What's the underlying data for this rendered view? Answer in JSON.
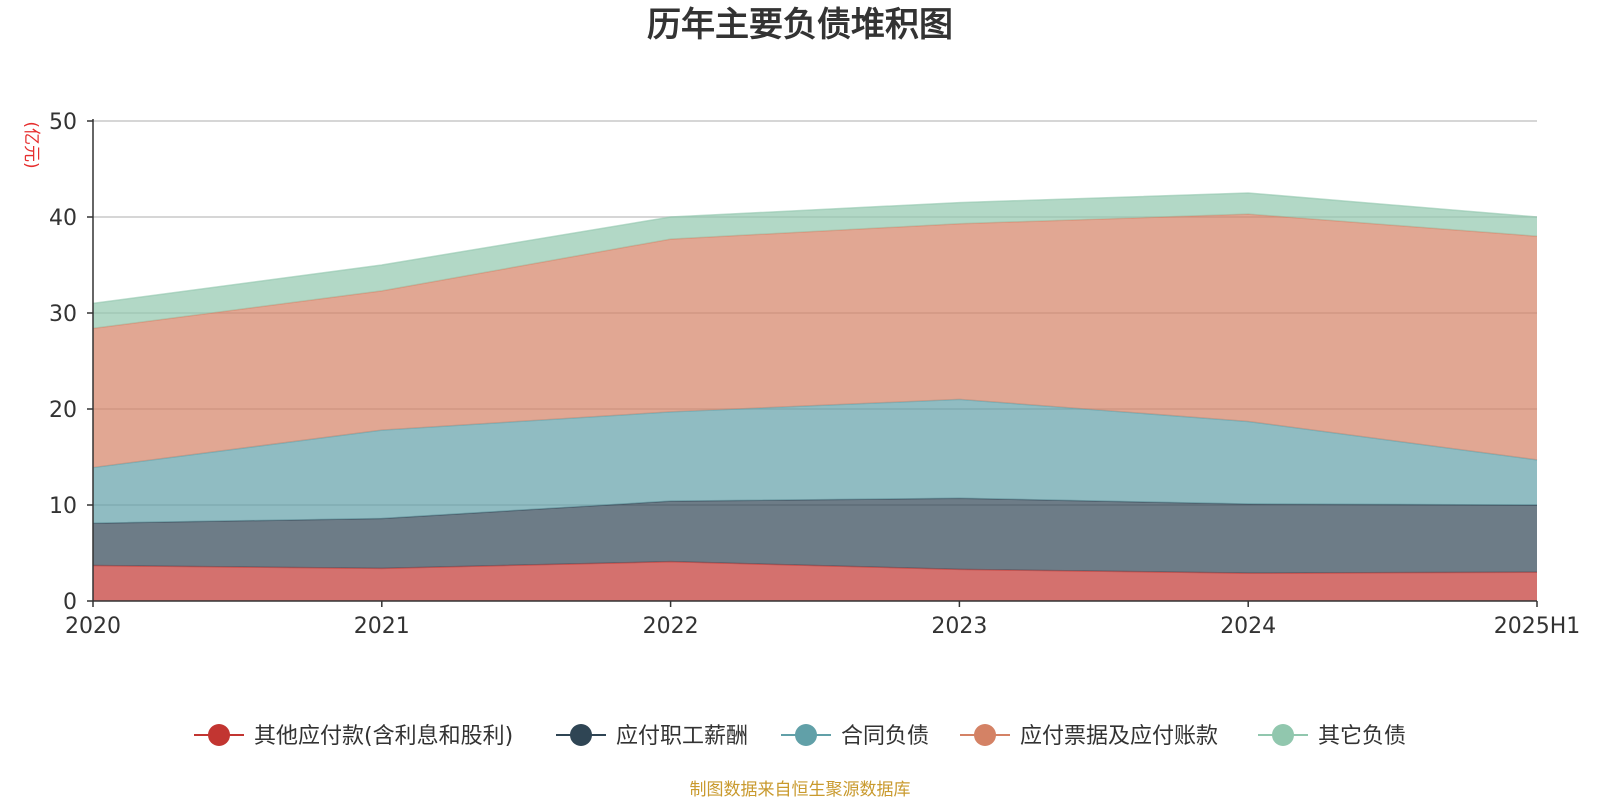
{
  "chart_data": {
    "type": "area",
    "stacked": true,
    "title": "历年主要负债堆积图",
    "unit": "(亿元)",
    "categories": [
      "2020",
      "2021",
      "2022",
      "2023",
      "2024",
      "2025H1"
    ],
    "ylim": [
      0,
      50
    ],
    "yticks": [
      0,
      10,
      20,
      30,
      40,
      50
    ],
    "grid": true,
    "legend_position": "bottom",
    "series": [
      {
        "name": "其他应付款(含利息和股利)",
        "color": "#c23531",
        "values": [
          3.7,
          3.4,
          4.1,
          3.3,
          2.9,
          3.0
        ]
      },
      {
        "name": "应付职工薪酬",
        "color": "#2f4554",
        "values": [
          4.4,
          5.2,
          6.3,
          7.4,
          7.2,
          7.0
        ]
      },
      {
        "name": "合同负债",
        "color": "#61a0a8",
        "values": [
          5.8,
          9.2,
          9.3,
          10.3,
          8.6,
          4.7
        ]
      },
      {
        "name": "应付票据及应付账款",
        "color": "#d48265",
        "values": [
          14.5,
          14.5,
          18.0,
          18.3,
          21.6,
          23.3
        ]
      },
      {
        "name": "其它负债",
        "color": "#91c7ae",
        "values": [
          2.6,
          2.7,
          2.3,
          2.2,
          2.2,
          2.0
        ]
      }
    ]
  },
  "footer": {
    "source": "制图数据来自恒生聚源数据库"
  }
}
